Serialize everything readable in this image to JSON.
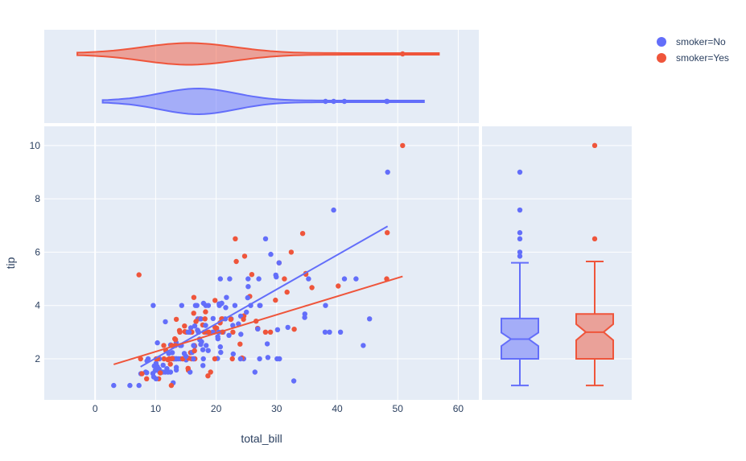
{
  "chart_data": {
    "type": "scatter",
    "xlabel": "total_bill",
    "ylabel": "tip",
    "xlim": [
      -8.4,
      63.4
    ],
    "ylim": [
      0.46,
      10.72
    ],
    "x_ticks": [
      "0",
      "10",
      "20",
      "30",
      "40",
      "50",
      "60"
    ],
    "y_ticks": [
      "2",
      "4",
      "6",
      "8",
      "10"
    ],
    "background": "#e5ecf6",
    "grid": true,
    "legend_position": "top-right",
    "marginal_x": "violin",
    "marginal_y": "box",
    "trendline": "ols",
    "series": [
      {
        "name": "smoker=No",
        "color": "#636efa",
        "trendline": {
          "x": [
            7.51,
            48.33
          ],
          "y": [
            1.7,
            6.97
          ]
        },
        "violin": {
          "min": 7.25,
          "max": 48.33,
          "outliers": [
            38.07,
            39.42,
            41.19,
            48.17,
            48.27
          ]
        },
        "box": {
          "min": 1.0,
          "q1": 2.0,
          "median": 2.74,
          "q3": 3.51,
          "upper_fence": 5.6,
          "notch": [
            2.48,
            2.98
          ],
          "outliers": [
            5.85,
            6.0,
            6.5,
            6.73,
            7.58,
            9.0
          ]
        },
        "points": [
          [
            10.34,
            1.66
          ],
          [
            21.01,
            3.5
          ],
          [
            23.68,
            3.31
          ],
          [
            24.59,
            3.61
          ],
          [
            25.29,
            4.71
          ],
          [
            8.77,
            2.0
          ],
          [
            26.88,
            3.12
          ],
          [
            15.04,
            1.96
          ],
          [
            14.78,
            3.23
          ],
          [
            10.27,
            1.71
          ],
          [
            35.26,
            5.0
          ],
          [
            15.42,
            1.57
          ],
          [
            18.43,
            3.0
          ],
          [
            14.83,
            3.02
          ],
          [
            21.58,
            3.92
          ],
          [
            10.33,
            1.67
          ],
          [
            16.29,
            3.71
          ],
          [
            16.97,
            3.5
          ],
          [
            20.65,
            3.35
          ],
          [
            17.92,
            4.08
          ],
          [
            20.29,
            2.75
          ],
          [
            15.77,
            2.23
          ],
          [
            39.42,
            7.58
          ],
          [
            19.82,
            3.18
          ],
          [
            17.81,
            2.34
          ],
          [
            13.37,
            2.0
          ],
          [
            12.69,
            2.0
          ],
          [
            21.7,
            4.3
          ],
          [
            19.65,
            3.0
          ],
          [
            9.55,
            1.45
          ],
          [
            18.35,
            2.5
          ],
          [
            15.06,
            3.0
          ],
          [
            20.69,
            2.45
          ],
          [
            17.78,
            3.27
          ],
          [
            24.06,
            3.6
          ],
          [
            16.31,
            2.0
          ],
          [
            16.93,
            3.07
          ],
          [
            18.69,
            2.31
          ],
          [
            31.27,
            5.0
          ],
          [
            16.04,
            2.24
          ],
          [
            17.46,
            2.54
          ],
          [
            13.94,
            3.06
          ],
          [
            9.68,
            1.32
          ],
          [
            30.4,
            5.6
          ],
          [
            18.29,
            3.0
          ],
          [
            22.23,
            5.0
          ],
          [
            32.4,
            6.0
          ],
          [
            28.55,
            2.05
          ],
          [
            18.04,
            3.0
          ],
          [
            12.54,
            2.5
          ],
          [
            10.29,
            2.6
          ],
          [
            34.81,
            5.2
          ],
          [
            9.94,
            1.56
          ],
          [
            25.56,
            4.34
          ],
          [
            19.49,
            3.51
          ],
          [
            26.41,
            1.5
          ],
          [
            48.27,
            6.73
          ],
          [
            17.59,
            2.64
          ],
          [
            20.08,
            3.15
          ],
          [
            16.45,
            2.47
          ],
          [
            20.23,
            2.01
          ],
          [
            12.02,
            1.97
          ],
          [
            17.07,
            3.0
          ],
          [
            26.86,
            3.14
          ],
          [
            25.28,
            5.0
          ],
          [
            14.73,
            2.2
          ],
          [
            10.51,
            1.25
          ],
          [
            27.2,
            4.0
          ],
          [
            22.76,
            3.0
          ],
          [
            17.29,
            2.71
          ],
          [
            19.44,
            3.0
          ],
          [
            16.66,
            3.4
          ],
          [
            10.07,
            1.83
          ],
          [
            34.83,
            5.17
          ],
          [
            13.03,
            2.0
          ],
          [
            18.28,
            4.0
          ],
          [
            24.71,
            5.85
          ],
          [
            21.16,
            3.0
          ],
          [
            28.97,
            3.0
          ],
          [
            22.49,
            3.5
          ],
          [
            5.75,
            1.0
          ],
          [
            16.32,
            4.3
          ],
          [
            22.75,
            3.25
          ],
          [
            40.17,
            4.73
          ],
          [
            27.28,
            4.0
          ],
          [
            12.03,
            1.5
          ],
          [
            21.01,
            3.0
          ],
          [
            12.46,
            1.5
          ],
          [
            11.35,
            2.5
          ],
          [
            15.38,
            3.0
          ],
          [
            44.3,
            2.5
          ],
          [
            22.42,
            3.48
          ],
          [
            20.92,
            4.08
          ],
          [
            15.36,
            1.64
          ],
          [
            20.49,
            4.06
          ],
          [
            25.21,
            4.29
          ],
          [
            18.24,
            3.76
          ],
          [
            14.31,
            4.0
          ],
          [
            14.0,
            3.0
          ],
          [
            7.25,
            1.0
          ],
          [
            38.07,
            4.0
          ],
          [
            23.95,
            2.55
          ],
          [
            25.71,
            4.0
          ],
          [
            17.31,
            3.5
          ],
          [
            29.93,
            5.07
          ],
          [
            10.65,
            1.5
          ],
          [
            12.43,
            1.8
          ],
          [
            24.08,
            2.92
          ],
          [
            11.69,
            2.31
          ],
          [
            13.42,
            1.68
          ],
          [
            14.26,
            2.5
          ],
          [
            15.95,
            2.0
          ],
          [
            12.48,
            2.52
          ],
          [
            29.8,
            4.2
          ],
          [
            8.52,
            1.48
          ],
          [
            14.52,
            2.0
          ],
          [
            11.38,
            2.0
          ],
          [
            22.82,
            2.18
          ],
          [
            19.08,
            1.5
          ],
          [
            20.27,
            2.83
          ],
          [
            11.17,
            1.5
          ],
          [
            12.26,
            2.0
          ],
          [
            18.26,
            3.25
          ],
          [
            8.51,
            1.25
          ],
          [
            10.33,
            2.0
          ],
          [
            14.15,
            2.0
          ],
          [
            13.16,
            2.75
          ],
          [
            17.47,
            3.5
          ],
          [
            34.3,
            6.7
          ],
          [
            41.19,
            5.0
          ],
          [
            27.05,
            5.0
          ],
          [
            16.43,
            2.3
          ],
          [
            8.35,
            1.5
          ],
          [
            18.64,
            1.36
          ],
          [
            11.87,
            1.63
          ],
          [
            9.78,
            1.73
          ],
          [
            7.51,
            2.0
          ],
          [
            14.07,
            2.5
          ],
          [
            13.13,
            2.0
          ],
          [
            17.26,
            2.74
          ],
          [
            24.55,
            2.0
          ],
          [
            19.77,
            2.0
          ],
          [
            29.85,
            5.14
          ],
          [
            48.17,
            5.0
          ],
          [
            25.0,
            3.75
          ],
          [
            13.39,
            2.61
          ],
          [
            16.49,
            2.0
          ],
          [
            21.5,
            3.5
          ],
          [
            12.66,
            2.5
          ],
          [
            16.21,
            2.0
          ],
          [
            13.81,
            2.0
          ],
          [
            24.52,
            3.48
          ],
          [
            20.76,
            2.24
          ],
          [
            31.71,
            4.5
          ],
          [
            10.59,
            1.61
          ],
          [
            10.63,
            2.0
          ],
          [
            50.81,
            10.0
          ],
          [
            15.81,
            3.16
          ],
          [
            7.25,
            5.15
          ],
          [
            31.85,
            3.18
          ],
          [
            16.82,
            4.0
          ],
          [
            32.9,
            3.11
          ],
          [
            17.89,
            2.0
          ],
          [
            14.48,
            2.0
          ],
          [
            34.63,
            3.55
          ],
          [
            34.65,
            3.68
          ],
          [
            23.33,
            5.65
          ],
          [
            45.35,
            3.5
          ],
          [
            23.17,
            6.5
          ],
          [
            40.55,
            3.0
          ],
          [
            20.69,
            5.0
          ],
          [
            20.9,
            3.5
          ],
          [
            30.46,
            2.0
          ],
          [
            18.15,
            3.5
          ],
          [
            23.1,
            4.0
          ],
          [
            15.69,
            1.5
          ],
          [
            19.81,
            4.19
          ],
          [
            28.44,
            2.56
          ],
          [
            15.48,
            2.02
          ],
          [
            16.58,
            4.0
          ],
          [
            7.56,
            1.44
          ],
          [
            10.34,
            2.0
          ],
          [
            43.11,
            5.0
          ],
          [
            13.0,
            2.0
          ],
          [
            13.51,
            2.0
          ],
          [
            18.71,
            4.0
          ],
          [
            12.74,
            2.01
          ],
          [
            13.0,
            2.0
          ],
          [
            16.4,
            2.5
          ],
          [
            20.53,
            4.0
          ],
          [
            16.47,
            3.23
          ],
          [
            26.59,
            3.41
          ],
          [
            38.73,
            3.0
          ],
          [
            24.27,
            2.03
          ],
          [
            12.76,
            2.23
          ],
          [
            30.06,
            2.0
          ],
          [
            25.89,
            5.16
          ],
          [
            48.33,
            9.0
          ],
          [
            13.27,
            2.5
          ],
          [
            28.17,
            6.5
          ],
          [
            12.9,
            1.1
          ],
          [
            28.15,
            3.0
          ],
          [
            11.59,
            1.5
          ],
          [
            7.74,
            1.44
          ],
          [
            30.14,
            3.09
          ],
          [
            12.16,
            2.2
          ],
          [
            13.42,
            3.48
          ],
          [
            8.58,
            1.92
          ],
          [
            15.98,
            3.0
          ],
          [
            13.42,
            1.58
          ],
          [
            16.27,
            2.5
          ],
          [
            10.09,
            2.0
          ],
          [
            20.45,
            3.0
          ],
          [
            13.28,
            2.72
          ],
          [
            22.12,
            2.88
          ],
          [
            24.01,
            2.0
          ],
          [
            15.69,
            3.0
          ],
          [
            11.61,
            3.39
          ],
          [
            10.77,
            1.47
          ],
          [
            15.53,
            3.0
          ],
          [
            10.07,
            1.25
          ],
          [
            12.6,
            1.0
          ],
          [
            32.83,
            1.17
          ],
          [
            35.83,
            4.67
          ],
          [
            29.03,
            5.92
          ],
          [
            27.18,
            2.0
          ],
          [
            22.67,
            2.0
          ],
          [
            17.82,
            1.75
          ],
          [
            18.78,
            3.0
          ],
          [
            3.07,
            1.0
          ],
          [
            15.01,
            2.09
          ],
          [
            12.02,
            1.97
          ],
          [
            17.07,
            3.0
          ],
          [
            26.86,
            3.14
          ],
          [
            11.24,
            1.76
          ],
          [
            38.01,
            3.0
          ],
          [
            22.42,
            3.48
          ],
          [
            20.92,
            4.08
          ],
          [
            15.36,
            1.64
          ],
          [
            9.6,
            4.0
          ],
          [
            13.37,
            2.0
          ],
          [
            20.65,
            3.35
          ],
          [
            30.4,
            5.6
          ],
          [
            12.74,
            2.01
          ],
          [
            26.88,
            3.12
          ],
          [
            16.93,
            3.07
          ]
        ]
      },
      {
        "name": "smoker=Yes",
        "color": "#ef553b",
        "trendline": {
          "x": [
            3.07,
            50.81
          ],
          "y": [
            1.79,
            5.09
          ]
        },
        "violin": {
          "min": 3.07,
          "max": 50.81,
          "outliers": [
            50.81
          ]
        },
        "box": {
          "min": 1.0,
          "q1": 2.0,
          "median": 3.0,
          "q3": 3.68,
          "upper_fence": 5.65,
          "notch": [
            2.7,
            3.3
          ],
          "outliers": [
            6.5,
            10.0
          ]
        },
        "points": []
      }
    ]
  },
  "legend": {
    "items": [
      {
        "label": "smoker=No",
        "color": "#636efa"
      },
      {
        "label": "smoker=Yes",
        "color": "#ef553b"
      }
    ]
  }
}
